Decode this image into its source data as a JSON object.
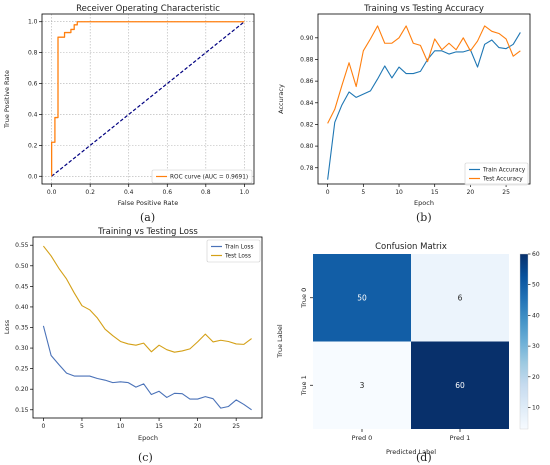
{
  "panel_labels": [
    "(a)",
    "(b)",
    "(c)",
    "(d)"
  ],
  "chart_data": [
    {
      "panel": "(a)",
      "type": "line",
      "title": "Receiver Operating Characteristic",
      "xlabel": "False Positive Rate",
      "ylabel": "True Positive Rate",
      "xlim": [
        -0.05,
        1.05
      ],
      "ylim": [
        -0.05,
        1.05
      ],
      "xticks": [
        "0.0",
        "0.2",
        "0.4",
        "0.6",
        "0.8",
        "1.0"
      ],
      "yticks": [
        "0.0",
        "0.2",
        "0.4",
        "0.6",
        "0.8",
        "1.0"
      ],
      "grid": true,
      "legend_position": "lower-right",
      "series": [
        {
          "name": "ROC curve (AUC = 0.9691)",
          "color": "#ff7f0e",
          "x": [
            0.0,
            0.0,
            0.0,
            0.0,
            0.017,
            0.017,
            0.033,
            0.033,
            0.05,
            0.05,
            0.067,
            0.067,
            0.1,
            0.1,
            0.117,
            0.117,
            0.133,
            0.133,
            1.0
          ],
          "y": [
            0.0,
            0.017,
            0.2,
            0.22,
            0.22,
            0.38,
            0.38,
            0.9,
            0.9,
            0.9,
            0.9,
            0.93,
            0.93,
            0.95,
            0.95,
            0.98,
            0.98,
            1.0,
            1.0
          ]
        },
        {
          "color": "#000080",
          "style": "dashed",
          "x": [
            0.0,
            1.0
          ],
          "y": [
            0.0,
            1.0
          ]
        }
      ]
    },
    {
      "panel": "(b)",
      "type": "line",
      "title": "Training vs Testing Accuracy",
      "xlabel": "Epoch",
      "ylabel": "Accuracy",
      "xlim": [
        -1.35,
        28.35
      ],
      "ylim": [
        0.765,
        0.922
      ],
      "xticks": [
        "0",
        "5",
        "10",
        "15",
        "20",
        "25"
      ],
      "yticks": [
        "0.78",
        "0.80",
        "0.82",
        "0.84",
        "0.86",
        "0.88",
        "0.90"
      ],
      "grid": false,
      "legend_position": "lower-right",
      "x": [
        0,
        1,
        2,
        3,
        4,
        5,
        6,
        7,
        8,
        9,
        10,
        11,
        12,
        13,
        14,
        15,
        16,
        17,
        18,
        19,
        20,
        21,
        22,
        23,
        24,
        25,
        26,
        27
      ],
      "series": [
        {
          "name": "Train Accuracy",
          "color": "#1f77b4",
          "values": [
            0.769,
            0.822,
            0.838,
            0.85,
            0.845,
            0.848,
            0.851,
            0.862,
            0.874,
            0.863,
            0.873,
            0.867,
            0.867,
            0.869,
            0.88,
            0.888,
            0.888,
            0.885,
            0.887,
            0.887,
            0.889,
            0.873,
            0.894,
            0.898,
            0.891,
            0.89,
            0.894,
            0.905
          ]
        },
        {
          "name": "Test Accuracy",
          "color": "#ff7f0e",
          "values": [
            0.821,
            0.834,
            0.856,
            0.877,
            0.855,
            0.888,
            0.899,
            0.911,
            0.895,
            0.895,
            0.9,
            0.911,
            0.895,
            0.893,
            0.878,
            0.899,
            0.889,
            0.895,
            0.889,
            0.9,
            0.888,
            0.897,
            0.911,
            0.906,
            0.904,
            0.899,
            0.883,
            0.888
          ]
        }
      ]
    },
    {
      "panel": "(c)",
      "type": "line",
      "title": "Training vs Testing Loss",
      "xlabel": "Epoch",
      "ylabel": "Loss",
      "xlim": [
        -1.35,
        28.35
      ],
      "ylim": [
        0.13,
        0.57
      ],
      "xticks": [
        "0",
        "5",
        "10",
        "15",
        "20",
        "25"
      ],
      "yticks": [
        "0.15",
        "0.20",
        "0.25",
        "0.30",
        "0.35",
        "0.40",
        "0.45",
        "0.50",
        "0.55"
      ],
      "grid": false,
      "legend_position": "top-right",
      "x": [
        0,
        1,
        2,
        3,
        4,
        5,
        6,
        7,
        8,
        9,
        10,
        11,
        12,
        13,
        14,
        15,
        16,
        17,
        18,
        19,
        20,
        21,
        22,
        23,
        24,
        25,
        26,
        27
      ],
      "series": [
        {
          "name": "Train Loss",
          "color": "#4a72b8",
          "values": [
            0.354,
            0.282,
            0.26,
            0.239,
            0.232,
            0.232,
            0.232,
            0.226,
            0.222,
            0.216,
            0.218,
            0.216,
            0.205,
            0.213,
            0.187,
            0.195,
            0.18,
            0.19,
            0.189,
            0.176,
            0.176,
            0.182,
            0.177,
            0.154,
            0.158,
            0.174,
            0.163,
            0.15
          ]
        },
        {
          "name": "Test Loss",
          "color": "#d4a017",
          "values": [
            0.548,
            0.524,
            0.494,
            0.468,
            0.434,
            0.403,
            0.393,
            0.373,
            0.346,
            0.33,
            0.316,
            0.31,
            0.307,
            0.312,
            0.291,
            0.307,
            0.296,
            0.29,
            0.293,
            0.298,
            0.315,
            0.334,
            0.315,
            0.319,
            0.316,
            0.31,
            0.309,
            0.323
          ]
        }
      ]
    },
    {
      "panel": "(d)",
      "type": "heatmap",
      "title": "Confusion Matrix",
      "xlabel": "Predicted Label",
      "ylabel": "True Label",
      "x_categories": [
        "Pred 0",
        "Pred 1"
      ],
      "y_categories": [
        "True 0",
        "True 1"
      ],
      "values": [
        [
          50,
          6
        ],
        [
          3,
          60
        ]
      ],
      "colorbar": {
        "ticks": [
          "10",
          "20",
          "30",
          "40",
          "50",
          "60"
        ],
        "range": [
          3,
          60
        ],
        "colors": [
          "#f7fbff",
          "#deebf7",
          "#c6dbef",
          "#9ecae1",
          "#6baed6",
          "#4292c6",
          "#2171b5",
          "#08519c",
          "#08306b"
        ]
      }
    }
  ]
}
